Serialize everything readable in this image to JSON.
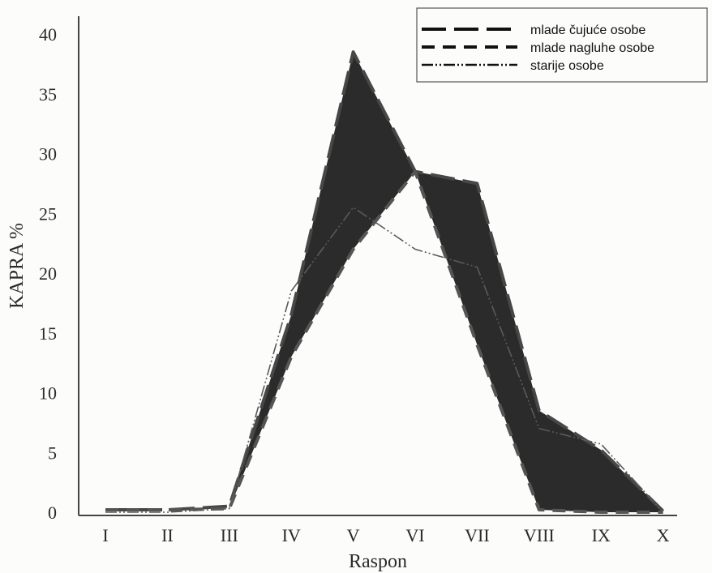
{
  "chart_data": {
    "type": "line",
    "xlabel": "Raspon",
    "ylabel": "KAPRA %",
    "categories": [
      "I",
      "II",
      "III",
      "IV",
      "V",
      "VI",
      "VII",
      "VIII",
      "IX",
      "X"
    ],
    "ylim": [
      0,
      40
    ],
    "yticks": [
      0,
      5,
      10,
      15,
      20,
      25,
      30,
      35,
      40
    ],
    "grid": false,
    "legend_position": "top-right",
    "shaded_between": [
      "mlade čujuće osobe",
      "mlade nagluhe osobe"
    ],
    "series": [
      {
        "name": "mlade čujuće osobe",
        "dash": "long-dash",
        "values": [
          0.2,
          0.2,
          0.5,
          16.5,
          38.5,
          28.5,
          27.5,
          8.5,
          5.2,
          0.1
        ]
      },
      {
        "name": "mlade nagluhe osobe",
        "dash": "short-dash",
        "values": [
          0.2,
          0.2,
          0.3,
          13.0,
          22.0,
          28.5,
          14.0,
          0.2,
          0.0,
          0.0
        ]
      },
      {
        "name": "starije osobe",
        "dash": "dash-dot-dot",
        "values": [
          0.0,
          0.0,
          0.3,
          18.5,
          25.5,
          22.0,
          20.5,
          7.0,
          5.7,
          0.0
        ]
      }
    ]
  }
}
